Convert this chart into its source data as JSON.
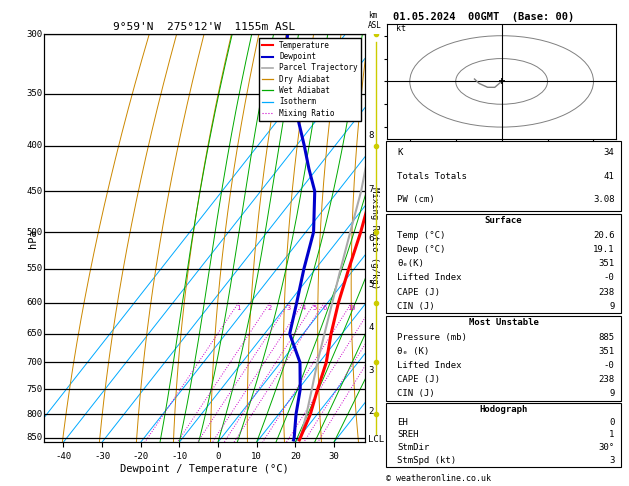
{
  "title_left": "9°59'N  275°12'W  1155m ASL",
  "title_right": "01.05.2024  00GMT  (Base: 00)",
  "xlabel": "Dewpoint / Temperature (°C)",
  "ylabel_left": "hPa",
  "ylabel_right": "Mixing Ratio (g/kg)",
  "p_levels": [
    300,
    350,
    400,
    450,
    500,
    550,
    600,
    650,
    700,
    750,
    800,
    850
  ],
  "p_min": 300,
  "p_max": 860,
  "t_min": -45,
  "t_max": 38,
  "background": "#ffffff",
  "temp_profile_p": [
    855,
    850,
    800,
    750,
    700,
    650,
    600,
    550,
    500,
    450,
    425,
    400,
    370,
    350,
    330,
    300
  ],
  "temp_profile_t": [
    20.6,
    20.4,
    18.2,
    15.0,
    11.8,
    7.2,
    2.8,
    -1.4,
    -5.8,
    -11.2,
    -14.5,
    -18.0,
    -22.0,
    -25.0,
    -29.0,
    -35.0
  ],
  "dewp_profile_p": [
    855,
    850,
    800,
    750,
    700,
    650,
    600,
    550,
    500,
    450,
    425,
    400,
    370,
    350,
    330,
    300
  ],
  "dewp_profile_t": [
    19.1,
    18.8,
    14.5,
    10.5,
    5.0,
    -3.5,
    -8.0,
    -13.0,
    -18.0,
    -26.0,
    -32.0,
    -38.0,
    -46.0,
    -52.0,
    -58.0,
    -65.0
  ],
  "parcel_profile_p": [
    855,
    850,
    800,
    750,
    700,
    650,
    600,
    550,
    500,
    450,
    400,
    370,
    350,
    330,
    300
  ],
  "parcel_profile_t": [
    20.6,
    20.4,
    17.2,
    13.5,
    9.5,
    5.5,
    1.2,
    -3.5,
    -8.5,
    -14.0,
    -21.0,
    -25.5,
    -28.5,
    -32.5,
    -38.5
  ],
  "temp_color": "#ff0000",
  "dewp_color": "#0000cc",
  "parcel_color": "#aaaaaa",
  "dry_adiabat_color": "#cc8800",
  "wet_adiabat_color": "#00aa00",
  "isotherm_color": "#00aaff",
  "mixing_ratio_color": "#cc00cc",
  "isotherm_values": [
    -50,
    -40,
    -30,
    -20,
    -10,
    0,
    10,
    20,
    30,
    40
  ],
  "dry_adiabat_thetas": [
    -30,
    -20,
    -10,
    0,
    10,
    20,
    30,
    40,
    50,
    60,
    70,
    80,
    90,
    100,
    110,
    120
  ],
  "wet_adiabat_t0": [
    -15,
    -10,
    -5,
    0,
    5,
    10,
    15,
    20,
    25,
    30
  ],
  "mixing_ratio_values": [
    1,
    2,
    3,
    4,
    5,
    6,
    10,
    15,
    20,
    25
  ],
  "km_ticks": [
    2,
    3,
    4,
    5,
    6,
    7,
    8
  ],
  "km_pressures": [
    795,
    715,
    640,
    572,
    508,
    448,
    390
  ],
  "stats_k": 34,
  "stats_tt": 41,
  "stats_pw": "3.08",
  "surface_temp": "20.6",
  "surface_dewp": "19.1",
  "surface_theta": 351,
  "surface_li": "-0",
  "surface_cape": 238,
  "surface_cin": 9,
  "mu_pressure": 885,
  "mu_theta": 351,
  "mu_li": "-0",
  "mu_cape": 238,
  "mu_cin": 9,
  "hodograph_eh": 0,
  "hodograph_sreh": 1,
  "hodograph_stmdir": "30°",
  "hodograph_stmspd": 3,
  "copyright": "© weatheronline.co.uk",
  "lcl_pressure": 853,
  "skew_factor": 1.0
}
